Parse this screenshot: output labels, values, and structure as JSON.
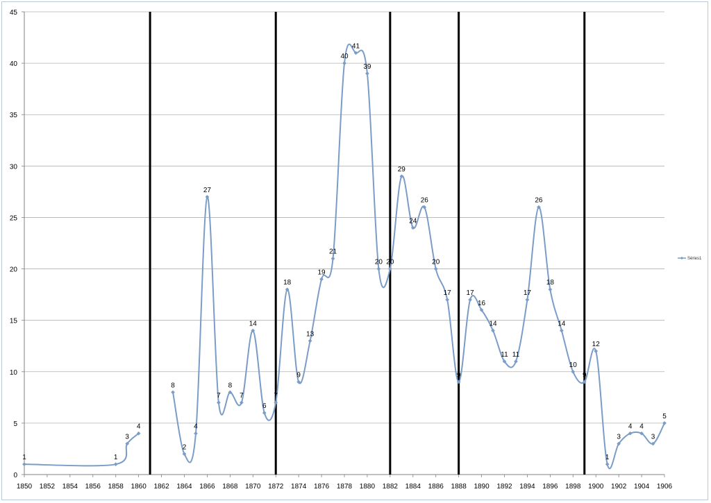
{
  "chart_data": {
    "type": "line",
    "title": "",
    "xlabel": "",
    "ylabel": "",
    "xlim": [
      1850,
      1906
    ],
    "ylim": [
      0,
      45
    ],
    "x_ticks": [
      1850,
      1852,
      1854,
      1856,
      1858,
      1860,
      1862,
      1864,
      1866,
      1868,
      1870,
      1872,
      1874,
      1876,
      1878,
      1880,
      1882,
      1884,
      1886,
      1888,
      1890,
      1892,
      1894,
      1896,
      1898,
      1900,
      1902,
      1904,
      1906
    ],
    "y_ticks": [
      0,
      5,
      10,
      15,
      20,
      25,
      30,
      35,
      40,
      45
    ],
    "grid": "horizontal",
    "legend_position": "right",
    "separators_x": [
      1861,
      1872,
      1882,
      1888,
      1899
    ],
    "series": [
      {
        "name": "Séries1",
        "color": "#7a9cc6",
        "segments": [
          [
            [
              1850,
              1
            ],
            [
              1858,
              1
            ],
            [
              1859,
              3
            ],
            [
              1860,
              4
            ]
          ],
          [
            [
              1863,
              8
            ],
            [
              1864,
              2
            ],
            [
              1865,
              4
            ],
            [
              1866,
              27
            ],
            [
              1867,
              7
            ],
            [
              1868,
              8
            ],
            [
              1869,
              7
            ],
            [
              1870,
              14
            ],
            [
              1871,
              6
            ],
            [
              1872,
              7
            ],
            [
              1873,
              18
            ],
            [
              1874,
              9
            ],
            [
              1875,
              13
            ],
            [
              1876,
              19
            ],
            [
              1877,
              21
            ],
            [
              1878,
              40
            ],
            [
              1879,
              41
            ],
            [
              1880,
              39
            ],
            [
              1881,
              20
            ],
            [
              1882,
              20
            ],
            [
              1883,
              29
            ],
            [
              1884,
              24
            ],
            [
              1885,
              26
            ],
            [
              1886,
              20
            ],
            [
              1887,
              17
            ],
            [
              1888,
              9
            ],
            [
              1889,
              17
            ],
            [
              1890,
              16
            ],
            [
              1891,
              14
            ],
            [
              1892,
              11
            ],
            [
              1893,
              11
            ],
            [
              1894,
              17
            ],
            [
              1895,
              26
            ],
            [
              1896,
              18
            ],
            [
              1897,
              14
            ],
            [
              1898,
              10
            ],
            [
              1899,
              9
            ],
            [
              1900,
              12
            ],
            [
              1901,
              1
            ],
            [
              1902,
              3
            ],
            [
              1903,
              4
            ],
            [
              1904,
              4
            ],
            [
              1905,
              3
            ],
            [
              1906,
              5
            ]
          ]
        ]
      }
    ]
  }
}
